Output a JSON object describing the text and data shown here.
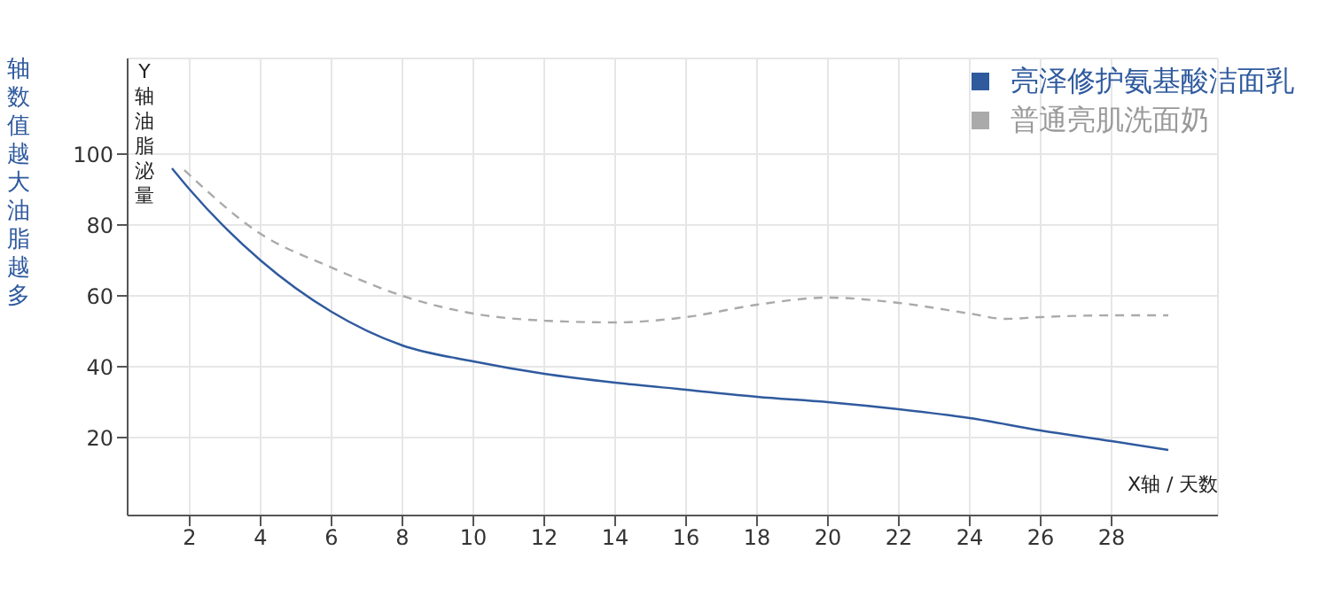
{
  "chart_data": {
    "type": "line",
    "ylabel": "Y轴油脂泌量",
    "xlabel": "X轴 / 天数",
    "annotations": [
      "轴数值越大油脂越多"
    ],
    "xlim": [
      0.25,
      31
    ],
    "xticks": [
      2,
      4,
      6,
      8,
      10,
      12,
      14,
      16,
      18,
      20,
      22,
      24,
      26,
      28
    ],
    "ylim": [
      -2,
      127
    ],
    "yticks": [
      20,
      40,
      60,
      80,
      100
    ],
    "grid": true,
    "legend": "top right",
    "marker": "none",
    "series": [
      {
        "name": "亮泽修护氨基酸洁面乳",
        "color": "#2f5a9e",
        "line_style": "solid",
        "x": [
          1.5,
          2,
          4,
          6,
          8,
          10,
          12,
          14,
          16,
          18,
          20,
          22,
          24,
          26,
          28,
          29.6
        ],
        "values": [
          96,
          90,
          70,
          55.5,
          46,
          41.5,
          38,
          35.5,
          33.5,
          31.5,
          30,
          28,
          25.5,
          22,
          19,
          16.5
        ]
      },
      {
        "name": "普通亮肌洗面奶",
        "color": "#aaaaaa",
        "line_style": "dashed",
        "x": [
          1.85,
          4,
          6,
          8,
          10,
          12,
          14,
          16,
          18,
          20,
          22,
          24,
          25,
          26,
          28,
          29.6
        ],
        "values": [
          95.5,
          77.5,
          68,
          60,
          55,
          53,
          52.5,
          54,
          57.5,
          59.5,
          58,
          55,
          53.5,
          54,
          54.5,
          54.5
        ]
      }
    ]
  }
}
